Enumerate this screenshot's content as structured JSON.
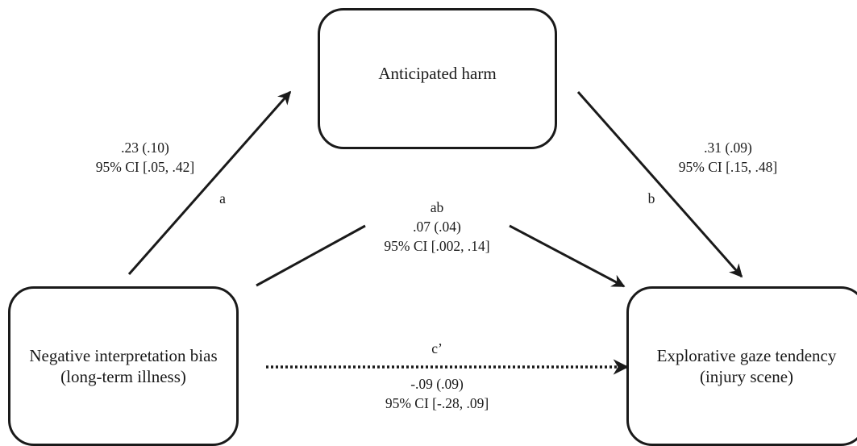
{
  "nodes": {
    "mediator": {
      "line1": "Anticipated harm"
    },
    "predictor": {
      "line1": "Negative interpretation bias",
      "line2": "(long-term illness)"
    },
    "outcome": {
      "line1": "Explorative gaze tendency",
      "line2": "(injury scene)"
    }
  },
  "paths": {
    "a": {
      "letter": "a",
      "estimate": ".23 (.10)",
      "ci": "95% CI [.05, .42]"
    },
    "b": {
      "letter": "b",
      "estimate": ".31 (.09)",
      "ci": "95% CI [.15, .48]"
    },
    "ab": {
      "letter": "ab",
      "estimate": ".07 (.04)",
      "ci": "95% CI [.002, .14]"
    },
    "c_prime": {
      "letter": "c’",
      "estimate": "-.09 (.09)",
      "ci": "95% CI [-.28, .09]"
    }
  }
}
